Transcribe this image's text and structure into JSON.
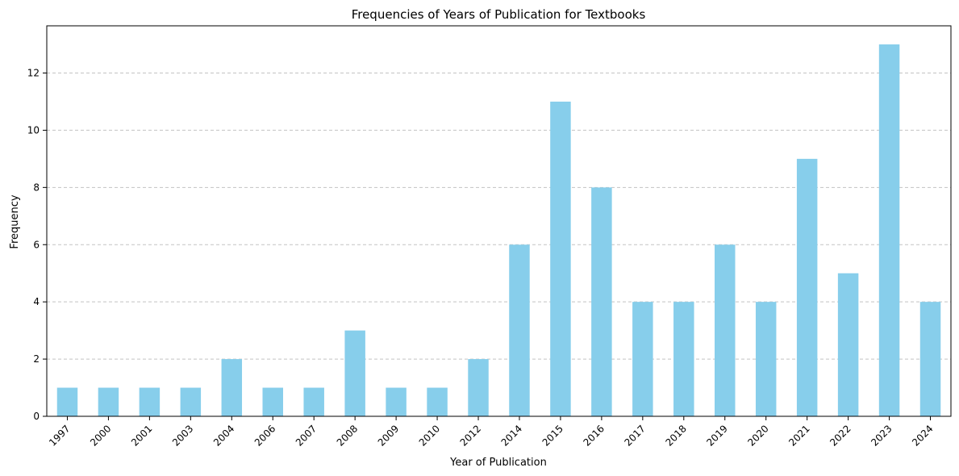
{
  "chart_data": {
    "type": "bar",
    "title": "Frequencies of Years of Publication for Textbooks",
    "xlabel": "Year of Publication",
    "ylabel": "Frequency",
    "categories": [
      "1997",
      "2000",
      "2001",
      "2003",
      "2004",
      "2006",
      "2007",
      "2008",
      "2009",
      "2010",
      "2012",
      "2014",
      "2015",
      "2016",
      "2017",
      "2018",
      "2019",
      "2020",
      "2021",
      "2022",
      "2023",
      "2024"
    ],
    "values": [
      1,
      1,
      1,
      1,
      2,
      1,
      1,
      3,
      1,
      1,
      2,
      6,
      11,
      8,
      4,
      4,
      6,
      4,
      9,
      5,
      13,
      4
    ],
    "ylim": [
      0,
      13.65
    ],
    "yticks": [
      0,
      2,
      4,
      6,
      8,
      10,
      12
    ],
    "grid": "y-dashed",
    "bar_color": "#87ceeb"
  }
}
